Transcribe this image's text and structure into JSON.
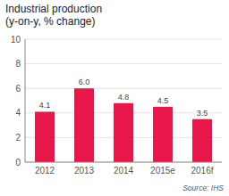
{
  "chart_data": {
    "type": "bar",
    "title": "Industrial production\n(y-on-y, % change)",
    "categories": [
      "2012",
      "2013",
      "2014",
      "2015e",
      "2016f"
    ],
    "values": [
      4.1,
      6.0,
      4.8,
      4.5,
      3.5
    ],
    "value_labels": [
      "4.1",
      "6.0",
      "4.8",
      "4.5",
      "3.5"
    ],
    "data_labels": true,
    "color": "#e8174a",
    "ylim": [
      0,
      10
    ],
    "yticks": [
      0,
      2,
      4,
      6,
      8,
      10
    ],
    "grid": true,
    "annotations": [
      "Source: IHS"
    ]
  }
}
